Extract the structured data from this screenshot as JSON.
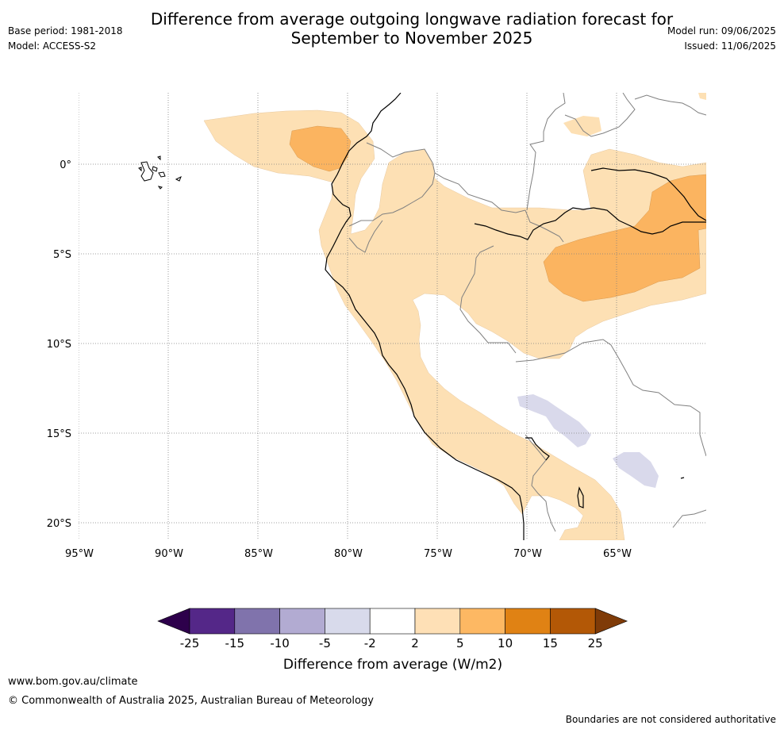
{
  "header": {
    "title_line1": "Difference from average outgoing longwave radiation forecast for",
    "title_line2": "September to November 2025",
    "base_period": "Base period: 1981-2018",
    "model": "Model: ACCESS-S2",
    "model_run": "Model run: 09/06/2025",
    "issued": "Issued: 11/06/2025"
  },
  "map": {
    "lat_labels": [
      "0°",
      "5°S",
      "10°S",
      "15°S",
      "20°S"
    ],
    "lon_labels": [
      "95°W",
      "90°W",
      "85°W",
      "80°W",
      "75°W",
      "70°W",
      "65°W"
    ],
    "colors": {
      "light_orange": "#fde0b4",
      "mid_orange": "#fbb460",
      "light_purple": "#d9d9eb",
      "coast": "#000000",
      "border": "#808080",
      "grid": "#808080"
    }
  },
  "colorbar": {
    "title": "Difference from average (W/m2)",
    "labels": [
      "-25",
      "-15",
      "-10",
      "-5",
      "-2",
      "2",
      "5",
      "10",
      "15",
      "25"
    ],
    "colors": [
      "#2d004b",
      "#542788",
      "#8073ac",
      "#b2abd2",
      "#d8daeb",
      "#ffffff",
      "#fee0b6",
      "#fdb863",
      "#e08214",
      "#b35806",
      "#7f3b08"
    ]
  },
  "footer": {
    "url": "www.bom.gov.au/climate",
    "copyright": "© Commonwealth of Australia 2025, Australian Bureau of Meteorology",
    "disclaimer": "Boundaries are not considered authoritative"
  }
}
